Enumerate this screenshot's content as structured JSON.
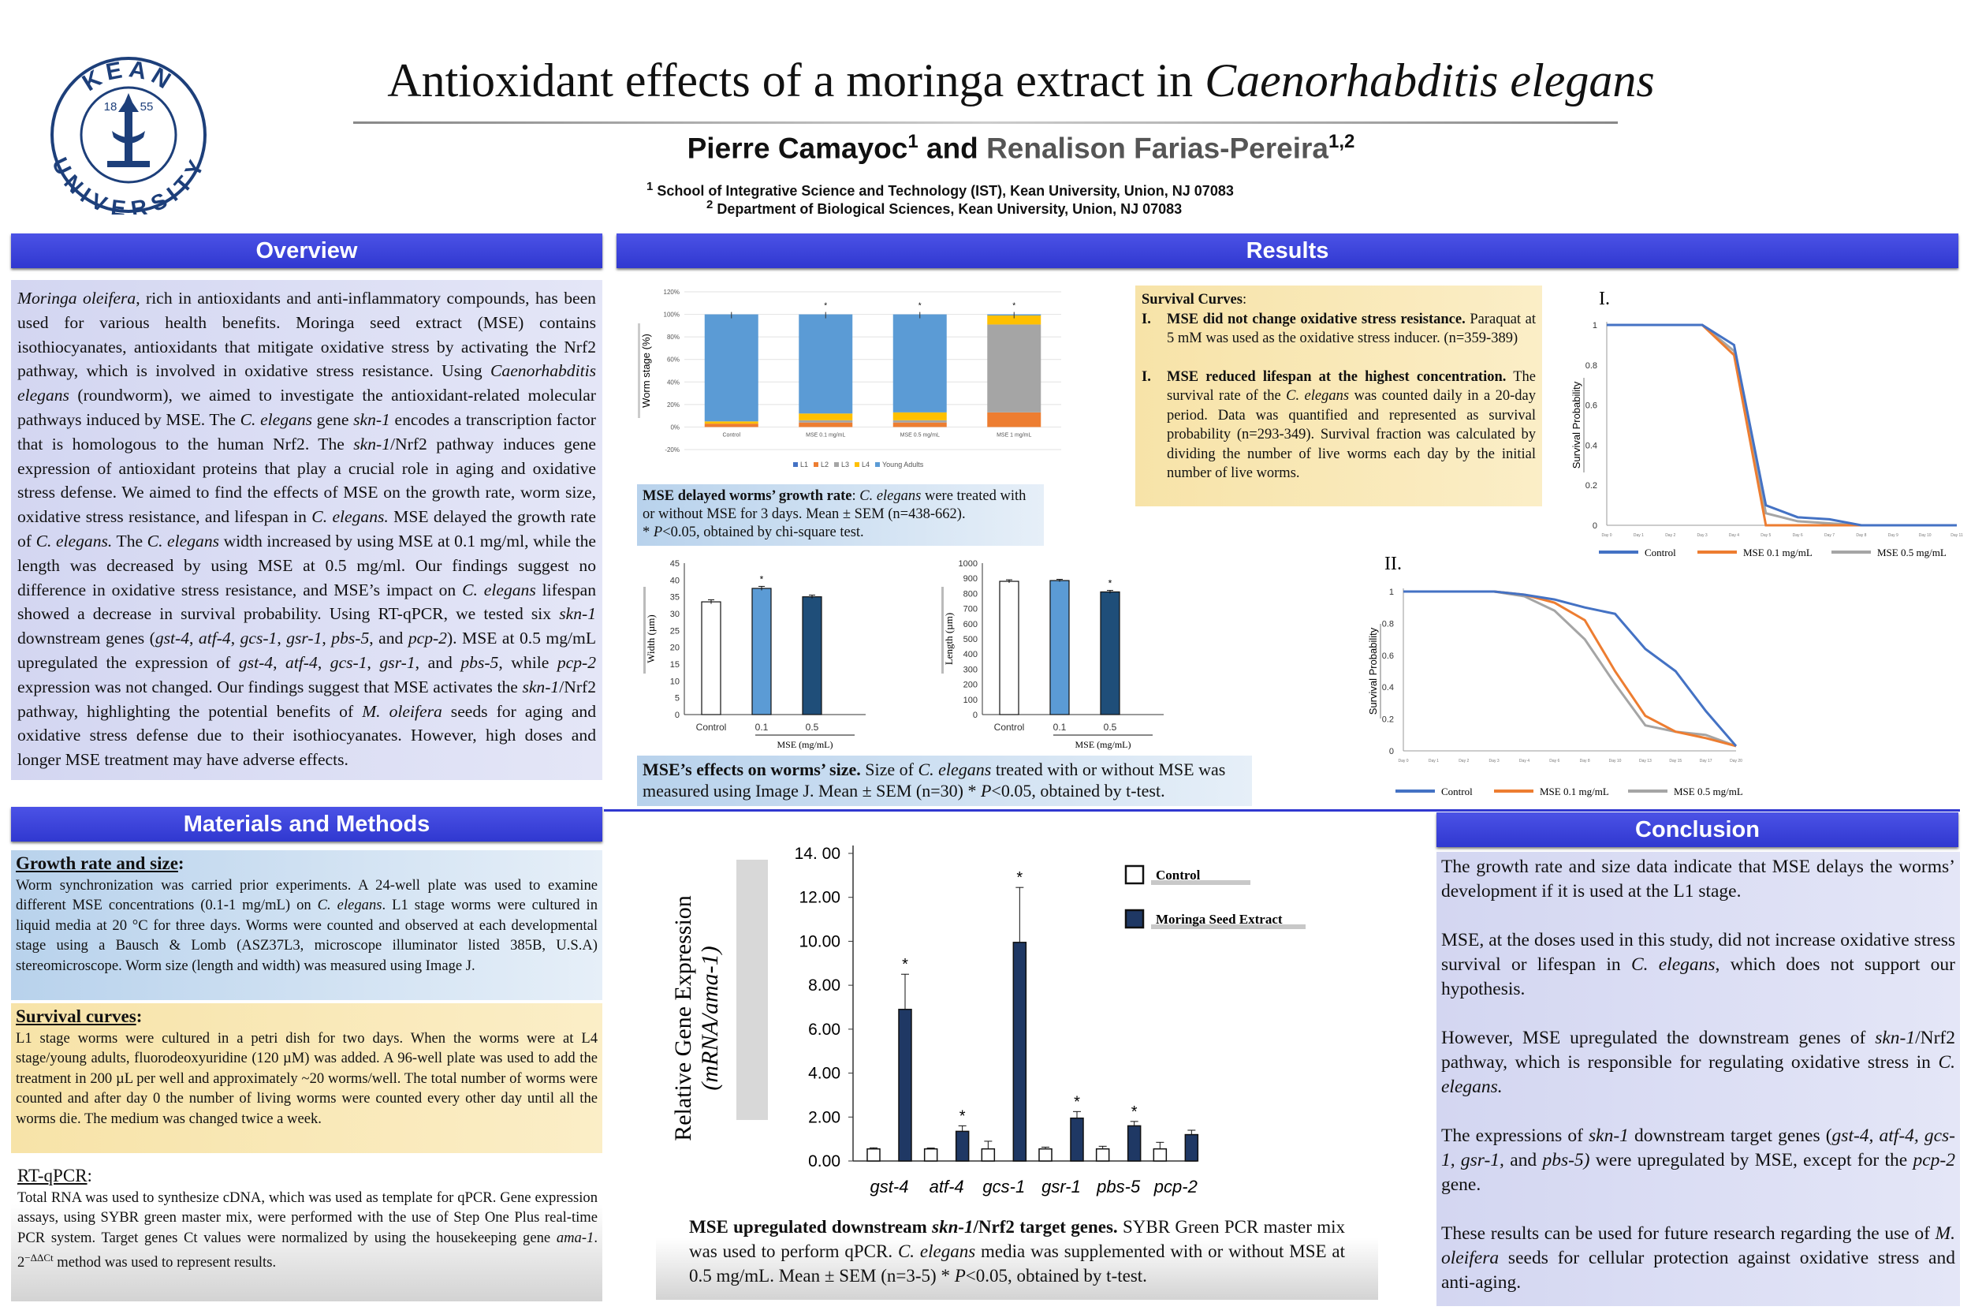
{
  "title": {
    "main": "Antioxidant effects of a moringa extract in ",
    "species": "Caenorhabditis elegans"
  },
  "logo": {
    "top_text": "KEAN",
    "bottom_text": "UNIVERSITY",
    "year_left": "18",
    "year_right": "55"
  },
  "authors": {
    "a1": "Pierre Camayoc",
    "a1_sup": "1",
    "and": " and ",
    "a2": "Renalison Farias-Pereira",
    "a2_sup": "1,2"
  },
  "affiliations": {
    "aff1_sup": "1",
    "aff1": " School of Integrative Science and Technology (IST), Kean University, Union, NJ 07083",
    "aff2_sup": "2",
    "aff2": " Department of Biological Sciences, Kean University, Union, NJ 07083"
  },
  "headers": {
    "overview": "Overview",
    "results": "Results",
    "methods": "Materials and Methods",
    "conclusion": "Conclusion"
  },
  "overview": {
    "s1": "Moringa oleifera",
    "s2": ", rich in antioxidants and anti-inflammatory compounds, has been used for various health benefits. Moringa seed extract (MSE) contains isothiocyanates, antioxidants that mitigate oxidative stress by activating the Nrf2 pathway, which is involved in oxidative stress resistance. Using ",
    "s3": "Caenorhabditis elegans",
    "s4": " (roundworm), we aimed to investigate the antioxidant-related molecular pathways induced by MSE. The ",
    "s5": "C. elegans",
    "s6": " gene ",
    "s7": "skn-1",
    "s8": " encodes a transcription factor that is homologous to the human Nrf2. The ",
    "s9": "skn-1",
    "s10": "/Nrf2 pathway induces gene expression of antioxidant proteins that play a crucial role in aging and oxidative stress defense. We aimed to find the effects of MSE on the growth rate, worm size, oxidative stress resistance, and lifespan in ",
    "s11": "C. elegans.",
    "s12": " MSE delayed the growth rate of ",
    "s13": "C. elegans.",
    "s14": " The ",
    "s15": "C. elegans",
    "s16": " width increased by using MSE at 0.1 mg/ml, while the length was decreased by using MSE at 0.5 mg/ml. Our findings suggest no difference in oxidative stress resistance, and MSE’s impact on ",
    "s17": "C. elegans",
    "s18": " lifespan showed a decrease in survival probability. Using RT-qPCR, we tested six ",
    "s19": "skn-1",
    "s20": " downstream genes (",
    "s21": "gst-4",
    "s22": ", ",
    "s23": "atf-4",
    "s24": ", ",
    "s25": "gcs-1",
    "s26": ", ",
    "s27": "gsr-1",
    "s28": ", ",
    "s29": "pbs-5",
    "s30": ", and ",
    "s31": "pcp-2",
    "s32": "). MSE at 0.5 mg/mL upregulated the expression of ",
    "s33": "gst-4",
    "s34": ", ",
    "s35": "atf-4",
    "s36": ", ",
    "s37": "gcs-1",
    "s38": ", ",
    "s39": "gsr-1",
    "s40": ", and ",
    "s41": "pbs-5",
    "s42": ", while ",
    "s43": "pcp-2",
    "s44": " expression was not changed. Our findings suggest that MSE activates the ",
    "s45": "skn-1",
    "s46": "/Nrf2 pathway, highlighting the potential benefits of ",
    "s47": "M. oleifera",
    "s48": " seeds for aging and oxidative stress defense due to their isothiocyanates. However, high doses and longer MSE treatment may have adverse effects."
  },
  "methods": {
    "growth_title": "Growth rate and size",
    "growth_colon": ":",
    "growth_t1": "Worm synchronization was carried prior experiments. A 24-well plate was used to examine different MSE concentrations (0.1-1 mg/mL) on ",
    "growth_t2": "C. elegans",
    "growth_t3": ". L1 stage worms were cultured in liquid media at 20 °C for three days. Worms were counted and observed at each developmental stage using a Bausch & Lomb (ASZ37L3, microscope illuminator listed 385B, U.S.A) stereomicroscope. Worm size (length and width) was measured using Image J.",
    "surv_title": "Survival curves",
    "surv_colon": ":",
    "surv_text": "L1 stage worms were cultured in a petri dish for two days. When the worms were at L4 stage/young adults, fluorodeoxyuridine (120 µM) was added. A 96-well plate was used to add the treatment in 200 µL per well and approximately ~20 worms/well. The total number of worms were counted and after day 0 the number of living worms were counted every other day until all the worms die. The medium was changed twice a week.",
    "rt_title": "RT-qPCR",
    "rt_colon": ":",
    "rt_t1": "Total RNA was used to synthesize cDNA, which was used as template for qPCR. Gene expression assays, using SYBR green master mix, were performed with the use of Step One Plus real-time PCR system. Target genes Ct values were normalized by using the housekeeping gene ",
    "rt_t2": "ama-1",
    "rt_t3": ". 2",
    "rt_sup": "−ΔΔCt",
    "rt_t4": " method was used to represent results."
  },
  "survival_box": {
    "heading": "Survival Curves",
    "colon": ":",
    "i1_num": "I.",
    "i1_bold": "MSE did not change oxidative stress resistance.",
    "i1_text": "Paraquat at 5 mM was used as the oxidative stress inducer. (n=359-389)",
    "i2_num": "I.",
    "i2_bold": "MSE reduced lifespan at the highest concentration.",
    "i2_t1": "The survival rate of the ",
    "i2_t2": "C. elegans",
    "i2_t3": " was counted daily in a 20-day period. Data was quantified and represented as survival probability (n=293-349). Survival fraction was calculated by dividing the number of live worms each day by the initial number of live worms."
  },
  "captions": {
    "growth_bold": "MSE delayed worms’ growth rate",
    "growth_t1": ": ",
    "growth_it": "C. elegans",
    "growth_t2": " were treated with or without MSE for 3 days. Mean ± SEM (n=438-662).",
    "growth_line2_a": "* ",
    "growth_line2_p": "P",
    "growth_line2_b": "<0.05, obtained by chi-square test.",
    "size_bold": "MSE’s effects on worms’ size.",
    "size_t1": " Size of ",
    "size_it": "C. elegans",
    "size_t2": " treated with or without MSE was measured using Image J. Mean ± SEM (n=30) * ",
    "size_p": "P",
    "size_t3": "<0.05, obtained by t-test.",
    "gene_bold1": "MSE upregulated downstream ",
    "gene_bold_it": "skn-1",
    "gene_bold2": "/Nrf2 target genes.",
    "gene_t1": " SYBR Green PCR master mix was used to perform qPCR. ",
    "gene_it": "C. elegans",
    "gene_t2": " media was supplemented with or without MSE at 0.5 mg/mL. Mean ± SEM (n=3-5) * ",
    "gene_p": "P",
    "gene_t3": "<0.05, obtained by t-test."
  },
  "conclusion": {
    "p1": "The growth rate and size data indicate that MSE delays the worms’ development if it is used at the L1 stage.",
    "p2a": "MSE, at the doses used in this study, did not increase oxidative stress survival or lifespan in ",
    "p2b": "C. elegans",
    "p2c": ", which does not support our hypothesis.",
    "p3a": "However, MSE upregulated the downstream genes of ",
    "p3b": "skn-1",
    "p3c": "/Nrf2 pathway, which is responsible for regulating oxidative stress in ",
    "p3d": "C. elegans.",
    "p4a": "The expressions of ",
    "p4b": "skn-1",
    "p4c": " downstream target genes (",
    "p4d": "gst-4, atf-4, gcs-1, gsr-1,",
    "p4e": " and ",
    "p4f": "pbs-5)",
    "p4g": " were upregulated by MSE, except for the ",
    "p4h": "pcp-2",
    "p4i": " gene.",
    "p5a": "These results can be used for future research regarding the use of ",
    "p5b": "M. oleifera",
    "p5c": " seeds for cellular protection against oxidative stress and anti-aging."
  },
  "chart_data": [
    {
      "id": "growth_stage",
      "type": "bar",
      "stacked": true,
      "ylabel": "Worm stage (%)",
      "yticks": [
        "120%",
        "100%",
        "80%",
        "60%",
        "40%",
        "20%",
        "0%",
        "-20%"
      ],
      "ylim": [
        -20,
        120
      ],
      "categories": [
        "Control",
        "MSE 0.1 mg/mL",
        "MSE 0.5 mg/mL",
        "MSE 1 mg/mL"
      ],
      "series": [
        {
          "name": "L1",
          "color": "#4472c4",
          "values": [
            0,
            0,
            0,
            0
          ]
        },
        {
          "name": "L2",
          "color": "#ed7d31",
          "values": [
            3,
            4,
            4,
            13
          ]
        },
        {
          "name": "L3",
          "color": "#a5a5a5",
          "values": [
            0,
            2,
            2,
            78
          ]
        },
        {
          "name": "L4",
          "color": "#ffc000",
          "values": [
            2,
            6,
            7,
            8
          ]
        },
        {
          "name": "Young Adults",
          "color": "#5b9bd5",
          "values": [
            95,
            88,
            87,
            1
          ]
        }
      ],
      "significance": [
        "",
        "*",
        "*",
        "*"
      ]
    },
    {
      "id": "width",
      "type": "bar",
      "ylabel": "Width (µm)",
      "ylim": [
        0,
        45
      ],
      "yticks": [
        "45",
        "40",
        "35",
        "30",
        "25",
        "20",
        "15",
        "10",
        "5",
        "0"
      ],
      "categories": [
        "Control",
        "0.1",
        "0.5"
      ],
      "xlabel": "MSE (mg/mL)",
      "values": [
        33.5,
        37.5,
        35
      ],
      "errors": [
        0.6,
        0.6,
        0.5
      ],
      "colors": [
        "#ffffff",
        "#5b9bd5",
        "#1f4e79"
      ],
      "significance": [
        "",
        "*",
        ""
      ]
    },
    {
      "id": "length",
      "type": "bar",
      "ylabel": "Length (µm)",
      "ylim": [
        0,
        1000
      ],
      "yticks": [
        "1000",
        "900",
        "800",
        "700",
        "600",
        "500",
        "400",
        "300",
        "200",
        "100",
        "0"
      ],
      "categories": [
        "Control",
        "0.1",
        "0.5"
      ],
      "xlabel": "MSE (mg/mL)",
      "values": [
        880,
        885,
        810
      ],
      "errors": [
        10,
        8,
        10
      ],
      "colors": [
        "#ffffff",
        "#5b9bd5",
        "#1f4e79"
      ],
      "significance": [
        "",
        "",
        "*"
      ]
    },
    {
      "id": "survival_I",
      "type": "line",
      "panel_label": "I.",
      "ylabel": "Survival Probability",
      "yticks": [
        "1",
        "0.8",
        "0.6",
        "0.4",
        "0.2",
        "0"
      ],
      "ylim": [
        0,
        1
      ],
      "x": [
        "Day 0",
        "Day 1",
        "Day 2",
        "Day 3",
        "Day 4",
        "Day 5",
        "Day 6",
        "Day 7",
        "Day 8",
        "Day 9",
        "Day 10",
        "Day 11"
      ],
      "series": [
        {
          "name": "Control",
          "color": "#4472c4",
          "values": [
            1,
            1,
            1,
            1,
            0.9,
            0.1,
            0.04,
            0.03,
            0,
            0,
            0,
            0
          ]
        },
        {
          "name": "MSE 0.1 mg/mL",
          "color": "#ed7d31",
          "values": [
            1,
            1,
            1,
            1,
            0.85,
            0,
            0,
            0,
            0,
            0,
            0,
            0
          ]
        },
        {
          "name": "MSE 0.5 mg/mL",
          "color": "#a5a5a5",
          "values": [
            1,
            1,
            1,
            1,
            0.87,
            0.06,
            0.02,
            0.01,
            0,
            0,
            0,
            0
          ]
        }
      ]
    },
    {
      "id": "survival_II",
      "type": "line",
      "panel_label": "II.",
      "ylabel": "Survival Probability",
      "yticks": [
        "1",
        "0.8",
        "0.6",
        "0.4",
        "0.2",
        "0"
      ],
      "ylim": [
        0,
        1
      ],
      "x": [
        "Day 0",
        "Day 1",
        "Day 2",
        "Day 3",
        "Day 4",
        "Day 6",
        "Day 8",
        "Day 10",
        "Day 13",
        "Day 15",
        "Day 17",
        "Day 20"
      ],
      "series": [
        {
          "name": "Control",
          "color": "#4472c4",
          "values": [
            1,
            1,
            1,
            1,
            0.98,
            0.95,
            0.9,
            0.86,
            0.64,
            0.5,
            0.25,
            0.03
          ]
        },
        {
          "name": "MSE 0.1 mg/mL",
          "color": "#ed7d31",
          "values": [
            1,
            1,
            1,
            1,
            0.98,
            0.93,
            0.82,
            0.5,
            0.22,
            0.12,
            0.08,
            0.03
          ]
        },
        {
          "name": "MSE 0.5 mg/mL",
          "color": "#a5a5a5",
          "values": [
            1,
            1,
            1,
            1,
            0.97,
            0.88,
            0.7,
            0.42,
            0.16,
            0.12,
            0.1,
            0.03
          ]
        }
      ]
    },
    {
      "id": "gene_expression",
      "type": "bar",
      "ylabel_line1": "Relative Gene Expression",
      "ylabel_line2": "(mRNA/ama-1)",
      "ylim": [
        0,
        14
      ],
      "yticks": [
        "14. 00",
        "12.00",
        "10.00",
        "8.00",
        "6.00",
        "4.00",
        "2.00",
        "0.00"
      ],
      "categories": [
        "gst-4",
        "atf-4",
        "gcs-1",
        "gsr-1",
        "pbs-5",
        "pcp-2"
      ],
      "series": [
        {
          "name": "Control",
          "color": "#ffffff",
          "values": [
            0.55,
            0.55,
            0.55,
            0.55,
            0.55,
            0.55
          ],
          "errors": [
            0.05,
            0.04,
            0.35,
            0.08,
            0.12,
            0.3
          ]
        },
        {
          "name": "Moringa Seed Extract",
          "color": "#1f3864",
          "values": [
            6.9,
            1.35,
            9.95,
            1.95,
            1.6,
            1.2
          ],
          "errors": [
            1.6,
            0.25,
            2.5,
            0.3,
            0.2,
            0.2
          ]
        }
      ],
      "significance": [
        "*",
        "*",
        "*",
        "*",
        "*",
        ""
      ]
    }
  ]
}
